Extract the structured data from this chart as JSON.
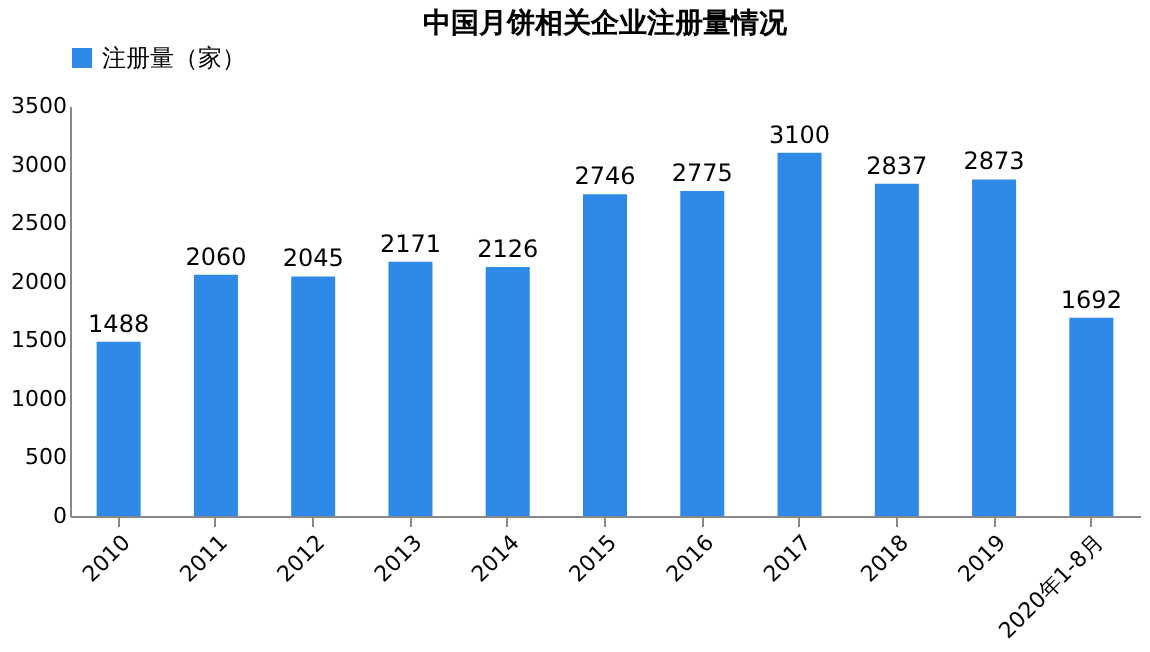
{
  "chart_data": {
    "type": "bar",
    "title": "中国月饼相关企业注册量情况",
    "categories": [
      "2010",
      "2011",
      "2012",
      "2013",
      "2014",
      "2015",
      "2016",
      "2017",
      "2018",
      "2019",
      "2020年1-8月"
    ],
    "series": [
      {
        "name": "注册量（家）",
        "color": "#2e8ae6",
        "values": [
          1488,
          2060,
          2045,
          2171,
          2126,
          2746,
          2775,
          3100,
          2837,
          2873,
          1692
        ]
      }
    ],
    "ylim": [
      0,
      3500
    ],
    "yticks": [
      0,
      500,
      1000,
      1500,
      2000,
      2500,
      3000,
      3500
    ],
    "grid": false,
    "legend": "top",
    "data_labels": true
  }
}
